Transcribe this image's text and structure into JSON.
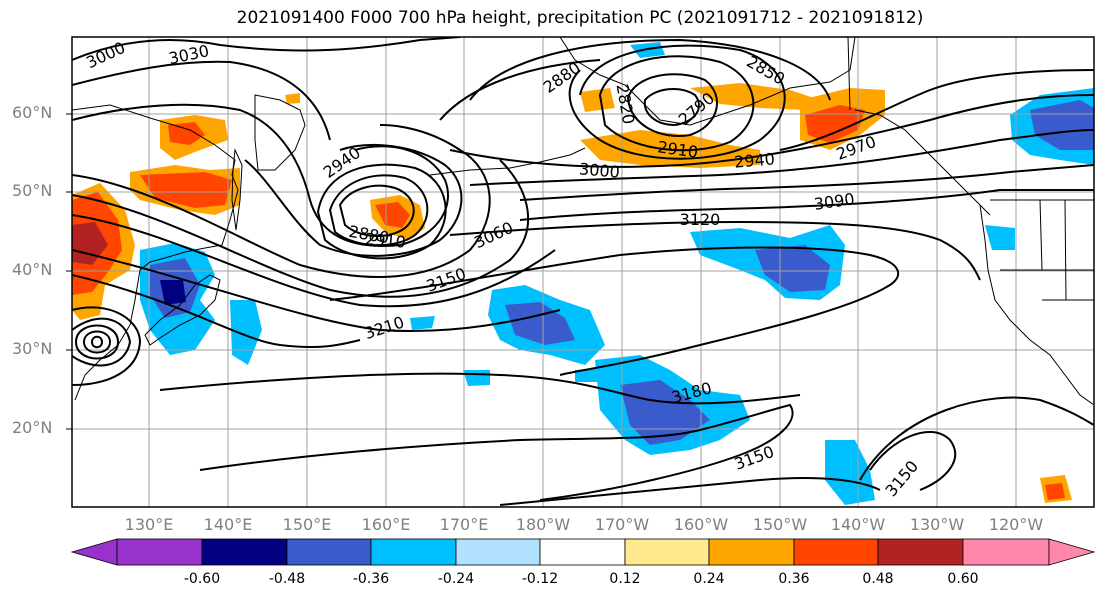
{
  "title": "2021091400 F000 700 hPa height, precipitation PC (2021091712 - 2021091812)",
  "lat_labels": [
    "60°N",
    "50°N",
    "40°N",
    "30°N",
    "20°N"
  ],
  "lon_labels": [
    "130°E",
    "140°E",
    "150°E",
    "160°E",
    "170°E",
    "180°W",
    "170°W",
    "160°W",
    "150°W",
    "140°W",
    "130°W",
    "120°W"
  ],
  "colorbar": {
    "tick_labels": [
      "-0.60",
      "-0.48",
      "-0.36",
      "-0.24",
      "-0.12",
      "0.12",
      "0.24",
      "0.36",
      "0.48",
      "0.60"
    ],
    "colors": [
      "#9932cc",
      "#000080",
      "#3a5bcc",
      "#00bfff",
      "#b0e2ff",
      "#ffffff",
      "#ffe98c",
      "#ffa500",
      "#ff4500",
      "#b22222",
      "#ff88aa"
    ]
  },
  "contour_labels": [
    "3000",
    "3030",
    "2880",
    "2850",
    "2820",
    "2790",
    "2910",
    "2940",
    "2970",
    "3000",
    "2940",
    "2880",
    "2910",
    "3060",
    "3120",
    "3090",
    "3150",
    "3210",
    "3180",
    "3150",
    "3150"
  ]
}
